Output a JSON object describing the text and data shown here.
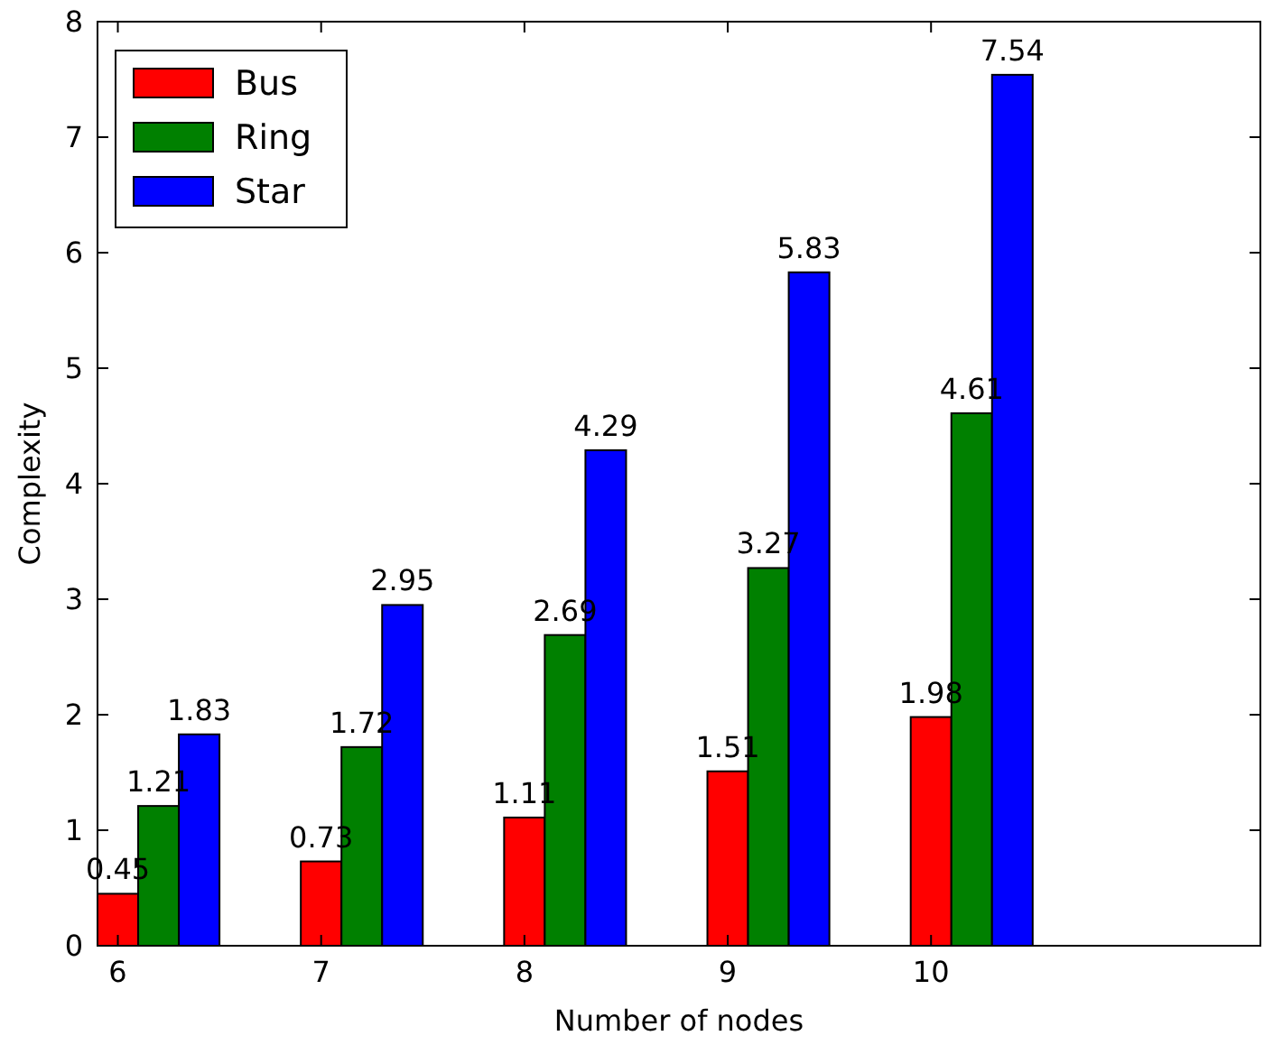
{
  "chart_data": {
    "type": "bar",
    "xlabel": "Number of nodes",
    "ylabel": "Complexity",
    "categories": [
      "6",
      "7",
      "8",
      "9",
      "10"
    ],
    "series": [
      {
        "name": "Bus",
        "color": "#ff0000",
        "values": [
          0.45,
          0.73,
          1.11,
          1.51,
          1.98
        ]
      },
      {
        "name": "Ring",
        "color": "#008000",
        "values": [
          1.21,
          1.72,
          2.69,
          3.27,
          4.61
        ]
      },
      {
        "name": "Star",
        "color": "#0000ff",
        "values": [
          1.83,
          2.95,
          4.29,
          5.83,
          7.54
        ]
      }
    ],
    "ylim": [
      0,
      8
    ],
    "yticks": [
      0,
      1,
      2,
      3,
      4,
      5,
      6,
      7,
      8
    ],
    "data_labels": true,
    "legend": "top left",
    "grid": false
  }
}
